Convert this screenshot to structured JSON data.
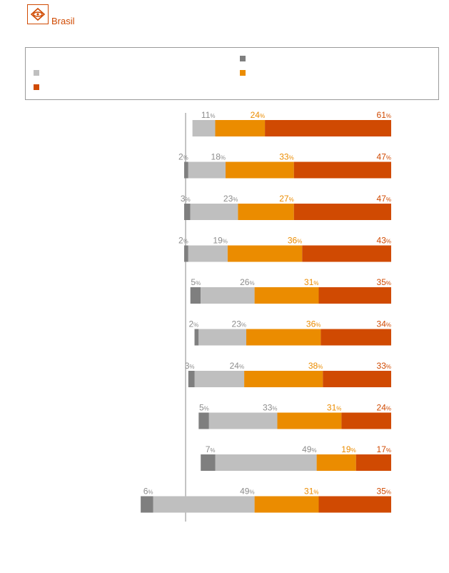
{
  "brand": {
    "name": "Brasil",
    "color": "#d04a02"
  },
  "colors": {
    "dark_gray": "#7f7f7f",
    "light_gray": "#bfbfbf",
    "orange": "#eb8c00",
    "red": "#d04a02",
    "label_gray": "#8c8c8c"
  },
  "legend": {
    "entries": [
      {
        "color": "#7f7f7f",
        "label": ""
      },
      {
        "color": "#bfbfbf",
        "label": ""
      },
      {
        "color": "#eb8c00",
        "label": ""
      },
      {
        "color": "#d04a02",
        "label": ""
      }
    ]
  },
  "chart_data": {
    "type": "bar",
    "orientation": "horizontal",
    "stacked": true,
    "percent_sign": "%",
    "series": [
      {
        "name": "",
        "color": "#7f7f7f",
        "values": [
          null,
          2,
          3,
          2,
          5,
          2,
          3,
          5,
          7,
          6
        ]
      },
      {
        "name": "",
        "color": "#bfbfbf",
        "values": [
          11,
          18,
          23,
          19,
          26,
          23,
          24,
          33,
          49,
          49
        ]
      },
      {
        "name": "",
        "color": "#eb8c00",
        "values": [
          24,
          33,
          27,
          36,
          31,
          36,
          38,
          31,
          19,
          31
        ]
      },
      {
        "name": "",
        "color": "#d04a02",
        "values": [
          61,
          47,
          47,
          43,
          35,
          34,
          33,
          24,
          17,
          35
        ]
      }
    ],
    "categories": [
      "",
      "",
      "",
      "",
      "",
      "",
      "",
      "",
      "",
      ""
    ]
  }
}
